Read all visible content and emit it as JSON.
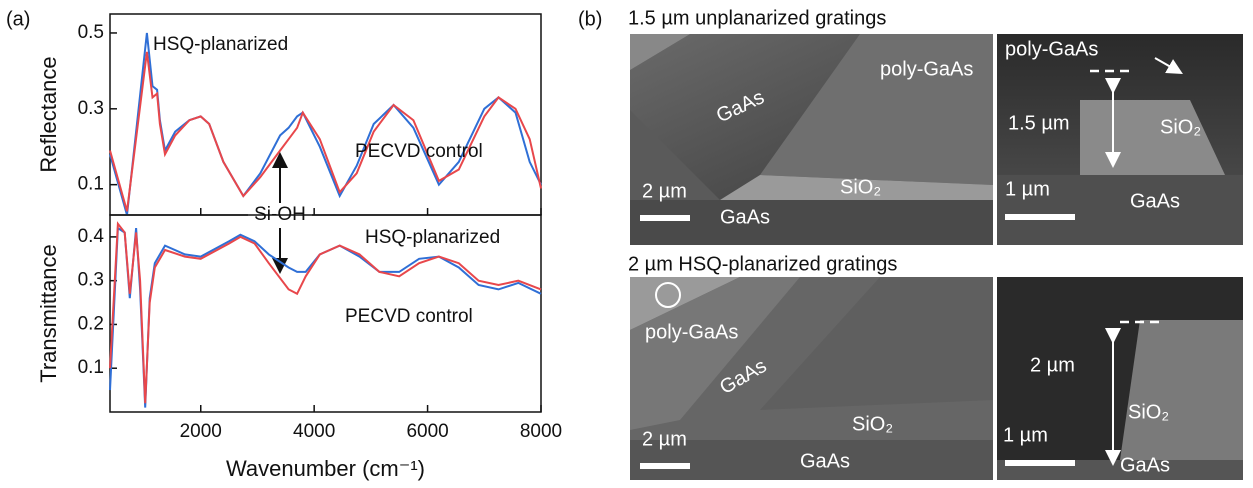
{
  "chart_data": [
    {
      "type": "line",
      "ylabel": "Reflectance",
      "x": [
        400,
        700,
        1050,
        1150,
        1230,
        1280,
        1370,
        1550,
        1800,
        2000,
        2150,
        2400,
        2750,
        3050,
        3400,
        3550,
        3700,
        3800,
        4100,
        4450,
        4750,
        5050,
        5400,
        5750,
        6200,
        6550,
        7000,
        7250,
        7550,
        7800,
        8000
      ],
      "series": [
        {
          "name": "HSQ-planarized",
          "color": "#2f6fd6",
          "values": [
            0.18,
            0.02,
            0.5,
            0.36,
            0.35,
            0.27,
            0.19,
            0.24,
            0.27,
            0.28,
            0.26,
            0.16,
            0.07,
            0.13,
            0.23,
            0.25,
            0.28,
            0.29,
            0.2,
            0.07,
            0.15,
            0.26,
            0.31,
            0.25,
            0.1,
            0.16,
            0.3,
            0.33,
            0.29,
            0.16,
            0.1
          ]
        },
        {
          "name": "PECVD control",
          "color": "#e8474b",
          "values": [
            0.19,
            0.03,
            0.45,
            0.33,
            0.34,
            0.26,
            0.18,
            0.23,
            0.27,
            0.28,
            0.26,
            0.16,
            0.07,
            0.12,
            0.19,
            0.22,
            0.25,
            0.29,
            0.22,
            0.08,
            0.13,
            0.24,
            0.31,
            0.27,
            0.11,
            0.14,
            0.28,
            0.33,
            0.3,
            0.22,
            0.09
          ]
        }
      ],
      "xlim": [
        400,
        8000
      ],
      "ylim": [
        0.02,
        0.55
      ],
      "yticks": [
        0.1,
        0.3,
        0.5
      ],
      "annotation": "Si-OH"
    },
    {
      "type": "line",
      "ylabel": "Transmittance",
      "xlabel": "Wavenumber (cm⁻¹)",
      "x": [
        400,
        540,
        660,
        750,
        860,
        930,
        1020,
        1100,
        1190,
        1370,
        1720,
        2000,
        2500,
        2700,
        2950,
        3200,
        3550,
        3700,
        3850,
        4100,
        4450,
        4800,
        5150,
        5500,
        5850,
        6200,
        6550,
        6900,
        7250,
        7600,
        8000
      ],
      "series": [
        {
          "name": "HSQ-planarized",
          "color": "#2f6fd6",
          "values": [
            0.05,
            0.42,
            0.41,
            0.26,
            0.42,
            0.28,
            0.01,
            0.26,
            0.34,
            0.38,
            0.36,
            0.355,
            0.39,
            0.405,
            0.39,
            0.36,
            0.33,
            0.32,
            0.32,
            0.36,
            0.38,
            0.355,
            0.32,
            0.32,
            0.35,
            0.355,
            0.33,
            0.29,
            0.28,
            0.295,
            0.27
          ]
        },
        {
          "name": "PECVD control",
          "color": "#e8474b",
          "values": [
            0.1,
            0.43,
            0.41,
            0.27,
            0.41,
            0.3,
            0.02,
            0.25,
            0.33,
            0.37,
            0.355,
            0.35,
            0.385,
            0.4,
            0.385,
            0.34,
            0.28,
            0.27,
            0.31,
            0.36,
            0.38,
            0.36,
            0.32,
            0.31,
            0.34,
            0.355,
            0.34,
            0.3,
            0.29,
            0.3,
            0.28
          ]
        }
      ],
      "xlim": [
        400,
        8000
      ],
      "ylim": [
        0,
        0.45
      ],
      "yticks": [
        0.1,
        0.2,
        0.3,
        0.4
      ],
      "xticks": [
        2000,
        4000,
        6000,
        8000
      ]
    }
  ],
  "panel_a": {
    "label": "(a)"
  },
  "panel_b": {
    "label": "(b)",
    "rows": [
      {
        "title": "1.5 µm unplanarized gratings",
        "images": [
          {
            "labels": [
              "GaAs",
              "poly-GaAs",
              "SiO₂",
              "GaAs",
              "2 µm"
            ]
          },
          {
            "labels": [
              "poly-GaAs",
              "1.5 µm",
              "SiO₂",
              "1 µm",
              "GaAs"
            ]
          }
        ]
      },
      {
        "title": "2 µm HSQ-planarized gratings",
        "images": [
          {
            "labels": [
              "poly-GaAs",
              "GaAs",
              "SiO₂",
              "2 µm",
              "GaAs"
            ]
          },
          {
            "labels": [
              "2 µm",
              "SiO₂",
              "1 µm",
              "GaAs"
            ]
          }
        ]
      }
    ]
  }
}
